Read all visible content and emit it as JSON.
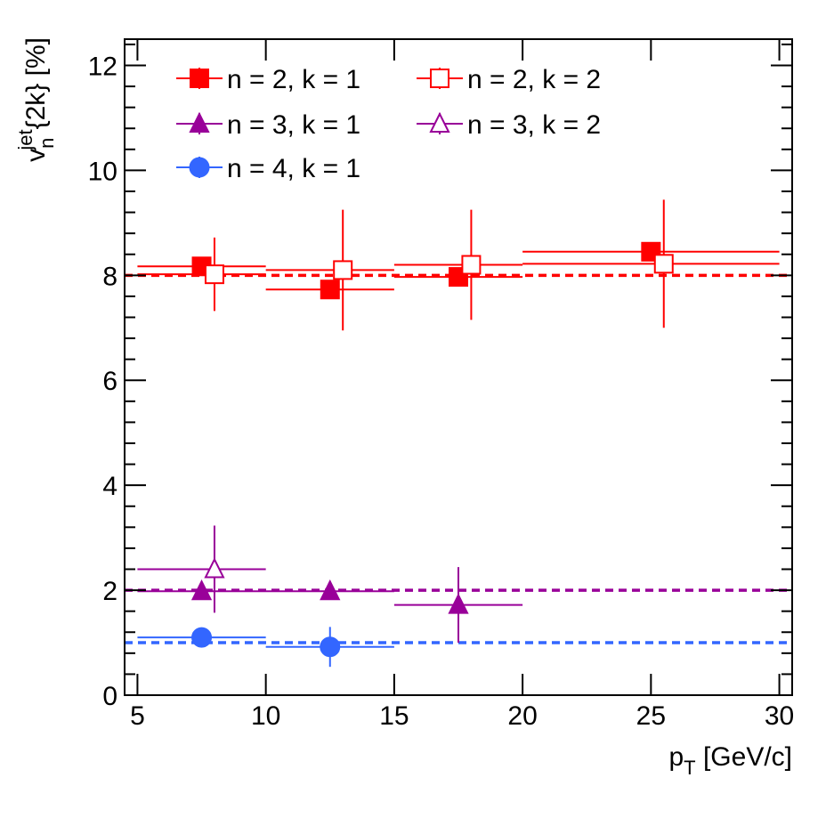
{
  "chart_data": {
    "type": "scatter",
    "xlabel": {
      "main": "p",
      "sub": "T",
      "rest": " [GeV/c]"
    },
    "ylabel": {
      "main": "v",
      "sub": "n",
      "sup": "jet",
      "rest": "{2k} [%]"
    },
    "xlim": [
      4.5,
      30.5
    ],
    "ylim": [
      0,
      12.5
    ],
    "x_ticks": [
      5,
      10,
      15,
      20,
      25,
      30
    ],
    "y_ticks": [
      0,
      2,
      4,
      6,
      8,
      10,
      12
    ],
    "reference_lines": [
      {
        "name": "n2-reference",
        "y": 8,
        "color": "#ff0000"
      },
      {
        "name": "n3-reference",
        "y": 2,
        "color": "#990099"
      },
      {
        "name": "n4-reference",
        "y": 1,
        "color": "#3366ff"
      }
    ],
    "series": [
      {
        "name": "n = 2, k = 1",
        "marker": "square",
        "filled": true,
        "color": "#ff0000",
        "points": [
          {
            "x": 7.5,
            "y": 8.17,
            "xlo": 5,
            "xhi": 10,
            "err": 0
          },
          {
            "x": 12.5,
            "y": 7.73,
            "xlo": 10,
            "xhi": 15,
            "err": 0
          },
          {
            "x": 17.5,
            "y": 7.97,
            "xlo": 15,
            "xhi": 20,
            "err": 0
          },
          {
            "x": 25,
            "y": 8.45,
            "xlo": 20,
            "xhi": 30,
            "err": 0
          }
        ]
      },
      {
        "name": "n = 2, k = 2",
        "marker": "square",
        "filled": false,
        "color": "#ff0000",
        "points": [
          {
            "x": 8,
            "y": 8.02,
            "xlo": 5,
            "xhi": 10,
            "err": 0.7
          },
          {
            "x": 13,
            "y": 8.1,
            "xlo": 10,
            "xhi": 15,
            "err": 1.15
          },
          {
            "x": 18,
            "y": 8.2,
            "xlo": 15,
            "xhi": 20,
            "err": 1.05
          },
          {
            "x": 25.5,
            "y": 8.22,
            "xlo": 20,
            "xhi": 30,
            "err": 1.22
          }
        ]
      },
      {
        "name": "n = 3, k = 1",
        "marker": "triangle",
        "filled": true,
        "color": "#990099",
        "points": [
          {
            "x": 7.5,
            "y": 1.98,
            "xlo": 5,
            "xhi": 10,
            "err": 0
          },
          {
            "x": 12.5,
            "y": 1.98,
            "xlo": 10,
            "xhi": 15,
            "err": 0
          },
          {
            "x": 17.5,
            "y": 1.72,
            "xlo": 15,
            "xhi": 20,
            "err": 0.72
          }
        ]
      },
      {
        "name": "n = 3, k = 2",
        "marker": "triangle",
        "filled": false,
        "color": "#990099",
        "points": [
          {
            "x": 8,
            "y": 2.4,
            "xlo": 5,
            "xhi": 10,
            "err": 0.83
          }
        ]
      },
      {
        "name": "n = 4, k = 1",
        "marker": "circle",
        "filled": true,
        "color": "#3366ff",
        "points": [
          {
            "x": 7.5,
            "y": 1.1,
            "xlo": 5,
            "xhi": 10,
            "err": 0
          },
          {
            "x": 12.5,
            "y": 0.92,
            "xlo": 10,
            "xhi": 15,
            "err": 0.38
          }
        ]
      }
    ],
    "legend": {
      "placement": "top-left",
      "layout": [
        [
          "n = 2, k = 1",
          "n = 2, k = 2"
        ],
        [
          "n = 3, k = 1",
          "n = 3, k = 2"
        ],
        [
          "n = 4, k = 1"
        ]
      ]
    }
  }
}
